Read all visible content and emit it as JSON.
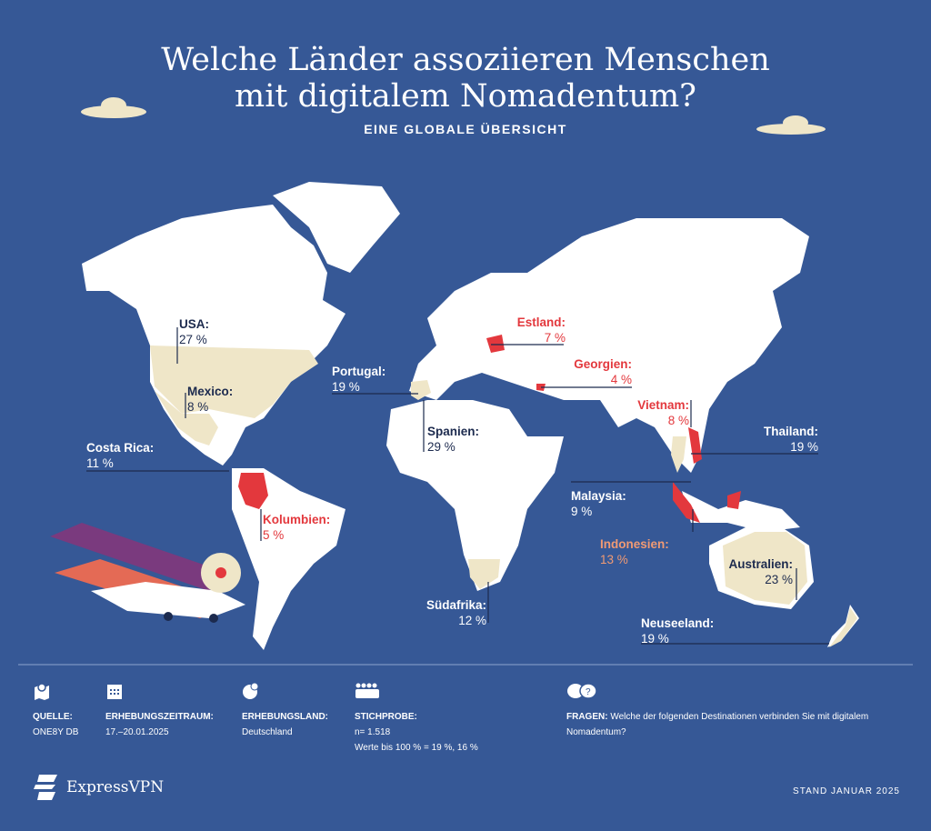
{
  "header": {
    "title_line1": "Welche Länder assoziieren Menschen",
    "title_line2": "mit digitalem Nomadentum?",
    "subtitle": "EINE GLOBALE ÜBERSICHT"
  },
  "colors": {
    "background": "#365896",
    "land": "#ffffff",
    "highlight_beige": "#efe6c8",
    "highlight_red": "#e3383d",
    "label_orange": "#f09a74",
    "label_dark": "#1c2a4e"
  },
  "countries": [
    {
      "name": "USA:",
      "value": "27 %"
    },
    {
      "name": "Mexico:",
      "value": "8 %"
    },
    {
      "name": "Costa Rica:",
      "value": "11 %"
    },
    {
      "name": "Kolumbien:",
      "value": "5 %"
    },
    {
      "name": "Portugal:",
      "value": "19 %"
    },
    {
      "name": "Spanien:",
      "value": "29 %"
    },
    {
      "name": "Estland:",
      "value": "7 %"
    },
    {
      "name": "Georgien:",
      "value": "4 %"
    },
    {
      "name": "Vietnam:",
      "value": "8 %"
    },
    {
      "name": "Thailand:",
      "value": "19 %"
    },
    {
      "name": "Malaysia:",
      "value": "9 %"
    },
    {
      "name": "Indonesien:",
      "value": "13 %"
    },
    {
      "name": "Australien:",
      "value": "23 %"
    },
    {
      "name": "Südafrika:",
      "value": "12 %"
    },
    {
      "name": "Neuseeland:",
      "value": "19 %"
    }
  ],
  "footer": {
    "source": {
      "label": "QUELLE:",
      "value": "ONE8Y DB",
      "icon": "map-pin-icon"
    },
    "period": {
      "label": "ERHEBUNGSZEITRAUM:",
      "value": "17.–20.01.2025",
      "icon": "calendar-icon"
    },
    "country": {
      "label": "ERHEBUNGSLAND:",
      "value": "Deutschland",
      "icon": "globe-pin-icon"
    },
    "sample": {
      "label": "STICHPROBE:",
      "value": "n= 1.518",
      "note": "Werte bis 100 % = 19 %, 16 %",
      "icon": "people-icon"
    },
    "question": {
      "label": "FRAGEN:",
      "value": "Welche der folgenden Destinationen verbinden Sie mit digitalem Nomadentum?",
      "icon": "chat-question-icon"
    },
    "brand": "ExpressVPN",
    "date": "STAND JANUAR 2025"
  }
}
